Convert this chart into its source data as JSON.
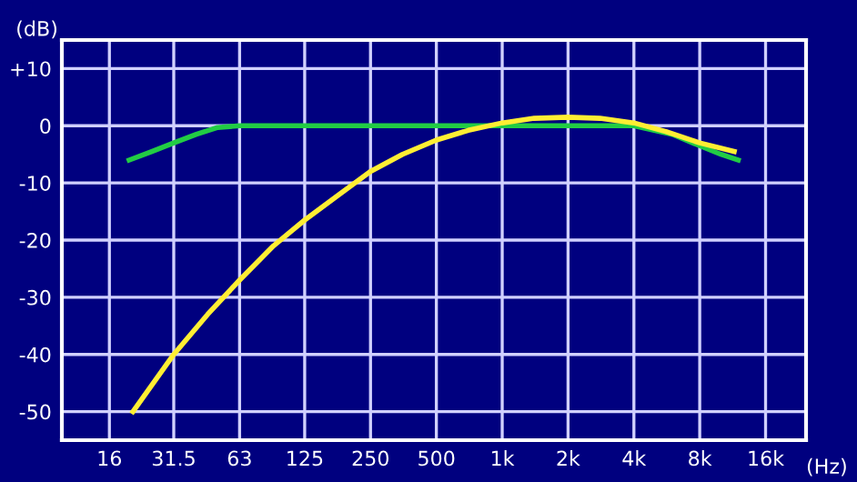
{
  "chart_data": {
    "type": "line",
    "xlabel": "(Hz)",
    "ylabel": "(dB)",
    "log": "x",
    "grid": true,
    "legend": false,
    "marker": "none",
    "line_style": "solid",
    "xlim": [
      9.7,
      24500
    ],
    "ylim": [
      -55,
      15
    ],
    "xticks": [
      16,
      31.5,
      63,
      125,
      250,
      500,
      {
        "value": 1000,
        "label": "1k"
      },
      {
        "value": 2000,
        "label": "2k"
      },
      {
        "value": 4000,
        "label": "4k"
      },
      {
        "value": 8000,
        "label": "8k"
      },
      {
        "value": 16000,
        "label": "16k"
      }
    ],
    "yticks": [
      {
        "value": 10,
        "label": "+10"
      },
      0,
      -10,
      -20,
      -30,
      -40,
      -50
    ],
    "series": [
      {
        "color": "#22cc44",
        "x": [
          19.7,
          25,
          31.5,
          40,
          50,
          63,
          125,
          250,
          500,
          1000,
          2000,
          4000,
          6000,
          8000,
          10000,
          12000
        ],
        "values": [
          -6,
          -4.5,
          -3,
          -1.5,
          -0.3,
          0,
          0,
          0,
          0,
          0,
          0,
          0,
          -1.5,
          -3.5,
          -5,
          -6
        ]
      },
      {
        "color": "#ffee33",
        "x": [
          20.5,
          31.5,
          45,
          63,
          90,
          125,
          180,
          250,
          350,
          500,
          700,
          1000,
          1400,
          2000,
          2800,
          4000,
          5600,
          8000,
          11500
        ],
        "values": [
          -50,
          -40,
          -33,
          -27,
          -21,
          -16.5,
          -12,
          -8,
          -5,
          -2.5,
          -0.8,
          0.5,
          1.3,
          1.5,
          1.3,
          0.5,
          -1,
          -3,
          -4.5
        ]
      }
    ]
  }
}
